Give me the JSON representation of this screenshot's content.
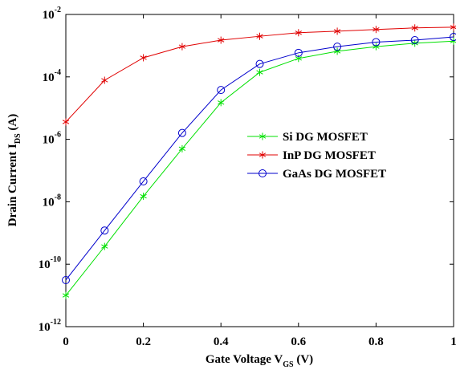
{
  "chart_data": {
    "type": "line",
    "log_y": true,
    "xlabel": [
      "Gate Voltage V",
      "GS",
      " (V)"
    ],
    "ylabel": [
      "Drain Current I",
      "DS",
      " (A)"
    ],
    "x": [
      0,
      0.1,
      0.2,
      0.3,
      0.4,
      0.5,
      0.6,
      0.7,
      0.8,
      0.9,
      1
    ],
    "xlim": [
      0,
      1
    ],
    "xticks": [
      0,
      0.2,
      0.4,
      0.6,
      0.8,
      1
    ],
    "ylim": [
      1e-12,
      0.01
    ],
    "yticks": [
      {
        "value": 1e-12,
        "label": "10-12"
      },
      {
        "value": 1e-10,
        "label": "10-10"
      },
      {
        "value": 1e-08,
        "label": "10-8"
      },
      {
        "value": 1e-06,
        "label": "10-6"
      },
      {
        "value": 0.0001,
        "label": "10-4"
      },
      {
        "value": 0.01,
        "label": "10-2"
      }
    ],
    "series": [
      {
        "name": "Si DG MOSFET",
        "color": "#00e000",
        "marker": "asterisk",
        "values": [
          1e-11,
          3.7e-10,
          1.5e-08,
          5e-07,
          1.5e-05,
          0.00014,
          0.00039,
          0.00066,
          0.00093,
          0.0012,
          0.0014
        ]
      },
      {
        "name": "InP DG MOSFET",
        "color": "#e00000",
        "marker": "asterisk",
        "values": [
          3.6e-06,
          7.8e-05,
          0.00041,
          0.00093,
          0.0015,
          0.002,
          0.0026,
          0.0029,
          0.0033,
          0.0037,
          0.0039
        ]
      },
      {
        "name": "GaAs DG MOSFET",
        "color": "#0000cc",
        "marker": "circle",
        "values": [
          3.1e-11,
          1.2e-09,
          4.5e-08,
          1.6e-06,
          3.8e-05,
          0.00026,
          0.00059,
          0.00093,
          0.0013,
          0.0015,
          0.0019
        ]
      }
    ]
  }
}
